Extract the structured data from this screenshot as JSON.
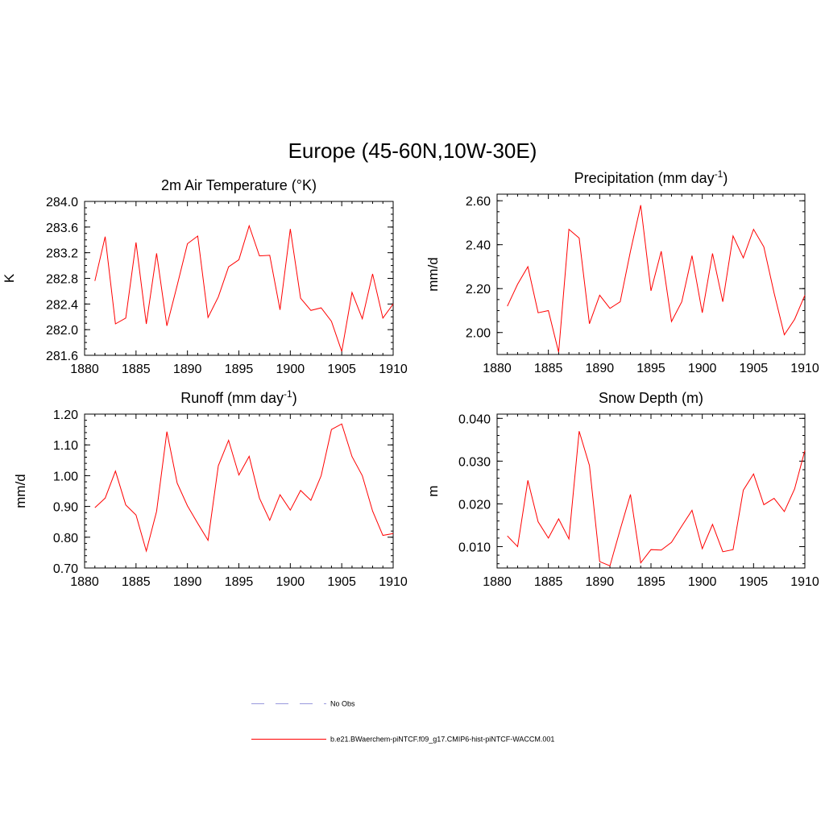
{
  "figure": {
    "title": "Europe (45-60N,10W-30E)"
  },
  "legend": [
    {
      "label": "No Obs",
      "color": "#9999dd",
      "style": "dashed"
    },
    {
      "label": "b.e21.BWaerchem-piNTCF.f09_g17.CMIP6-hist-piNTCF-WACCM.001",
      "color": "#ff0000",
      "style": "solid"
    }
  ],
  "chart_data": [
    {
      "type": "line",
      "title": "2m Air Temperature (°K)",
      "ylabel": "K",
      "xlim": [
        1880,
        1910
      ],
      "ylim": [
        281.6,
        284.0
      ],
      "xticks": [
        1880,
        1885,
        1890,
        1895,
        1900,
        1905,
        1910
      ],
      "yticks": [
        281.6,
        282.0,
        282.4,
        282.8,
        283.2,
        283.6,
        284.0
      ],
      "yminor": 0.1,
      "ydecimals": 1,
      "series": [
        {
          "color": "#ff0000",
          "x": [
            1881,
            1882,
            1883,
            1884,
            1885,
            1886,
            1887,
            1888,
            1889,
            1890,
            1891,
            1892,
            1893,
            1894,
            1895,
            1896,
            1897,
            1898,
            1899,
            1900,
            1901,
            1902,
            1903,
            1904,
            1905,
            1906,
            1907,
            1908,
            1909,
            1910
          ],
          "y": [
            282.76,
            283.45,
            282.09,
            282.18,
            283.36,
            282.09,
            283.19,
            282.06,
            282.69,
            283.34,
            283.46,
            282.19,
            282.51,
            282.98,
            283.09,
            283.62,
            283.15,
            283.16,
            282.31,
            283.57,
            282.49,
            282.3,
            282.34,
            282.13,
            281.66,
            282.58,
            282.17,
            282.87,
            282.18,
            282.4
          ]
        }
      ]
    },
    {
      "type": "line",
      "title": "Precipitation (mm day-1)",
      "ylabel": "mm/d",
      "xlim": [
        1880,
        1910
      ],
      "ylim": [
        1.9,
        2.63
      ],
      "xticks": [
        1880,
        1885,
        1890,
        1895,
        1900,
        1905,
        1910
      ],
      "yticks": [
        2.0,
        2.2,
        2.4,
        2.6
      ],
      "yminor": 0.05,
      "ydecimals": 2,
      "series": [
        {
          "color": "#ff0000",
          "x": [
            1881,
            1882,
            1883,
            1884,
            1885,
            1886,
            1887,
            1888,
            1889,
            1890,
            1891,
            1892,
            1893,
            1894,
            1895,
            1896,
            1897,
            1898,
            1899,
            1900,
            1901,
            1902,
            1903,
            1904,
            1905,
            1906,
            1907,
            1908,
            1909,
            1910
          ],
          "y": [
            2.12,
            2.22,
            2.3,
            2.09,
            2.1,
            1.91,
            2.47,
            2.43,
            2.04,
            2.17,
            2.11,
            2.14,
            2.37,
            2.58,
            2.19,
            2.37,
            2.05,
            2.14,
            2.35,
            2.09,
            2.36,
            2.14,
            2.44,
            2.34,
            2.47,
            2.39,
            2.18,
            1.99,
            2.06,
            2.17
          ]
        }
      ]
    },
    {
      "type": "line",
      "title": "Runoff (mm day-1)",
      "ylabel": "mm/d",
      "xlim": [
        1880,
        1910
      ],
      "ylim": [
        0.7,
        1.2
      ],
      "xticks": [
        1880,
        1885,
        1890,
        1895,
        1900,
        1905,
        1910
      ],
      "yticks": [
        0.7,
        0.8,
        0.9,
        1.0,
        1.1,
        1.2
      ],
      "yminor": 0.02,
      "ydecimals": 2,
      "series": [
        {
          "color": "#ff0000",
          "x": [
            1881,
            1882,
            1883,
            1884,
            1885,
            1886,
            1887,
            1888,
            1889,
            1890,
            1891,
            1892,
            1893,
            1894,
            1895,
            1896,
            1897,
            1898,
            1899,
            1900,
            1901,
            1902,
            1903,
            1904,
            1905,
            1906,
            1907,
            1908,
            1909,
            1910
          ],
          "y": [
            0.896,
            0.927,
            1.015,
            0.905,
            0.872,
            0.755,
            0.884,
            1.143,
            0.976,
            0.902,
            0.845,
            0.79,
            1.032,
            1.115,
            1.002,
            1.063,
            0.927,
            0.855,
            0.938,
            0.888,
            0.952,
            0.92,
            1.0,
            1.15,
            1.168,
            1.062,
            1.0,
            0.885,
            0.806,
            0.812
          ]
        }
      ]
    },
    {
      "type": "line",
      "title": "Snow Depth (m)",
      "ylabel": "m",
      "xlim": [
        1880,
        1910
      ],
      "ylim": [
        0.005,
        0.041
      ],
      "xticks": [
        1880,
        1885,
        1890,
        1895,
        1900,
        1905,
        1910
      ],
      "yticks": [
        0.01,
        0.02,
        0.03,
        0.04
      ],
      "yminor": 0.002,
      "ydecimals": 3,
      "series": [
        {
          "color": "#ff0000",
          "x": [
            1881,
            1882,
            1883,
            1884,
            1885,
            1886,
            1887,
            1888,
            1889,
            1890,
            1891,
            1892,
            1893,
            1894,
            1895,
            1896,
            1897,
            1898,
            1899,
            1900,
            1901,
            1902,
            1903,
            1904,
            1905,
            1906,
            1907,
            1908,
            1909,
            1910
          ],
          "y": [
            0.0125,
            0.01,
            0.0255,
            0.0158,
            0.012,
            0.0165,
            0.0118,
            0.037,
            0.029,
            0.0065,
            0.0055,
            0.014,
            0.0222,
            0.0062,
            0.0093,
            0.0092,
            0.011,
            0.0148,
            0.0185,
            0.0095,
            0.0152,
            0.0088,
            0.0093,
            0.0232,
            0.027,
            0.0198,
            0.0213,
            0.0182,
            0.0235,
            0.0325
          ]
        }
      ]
    }
  ]
}
